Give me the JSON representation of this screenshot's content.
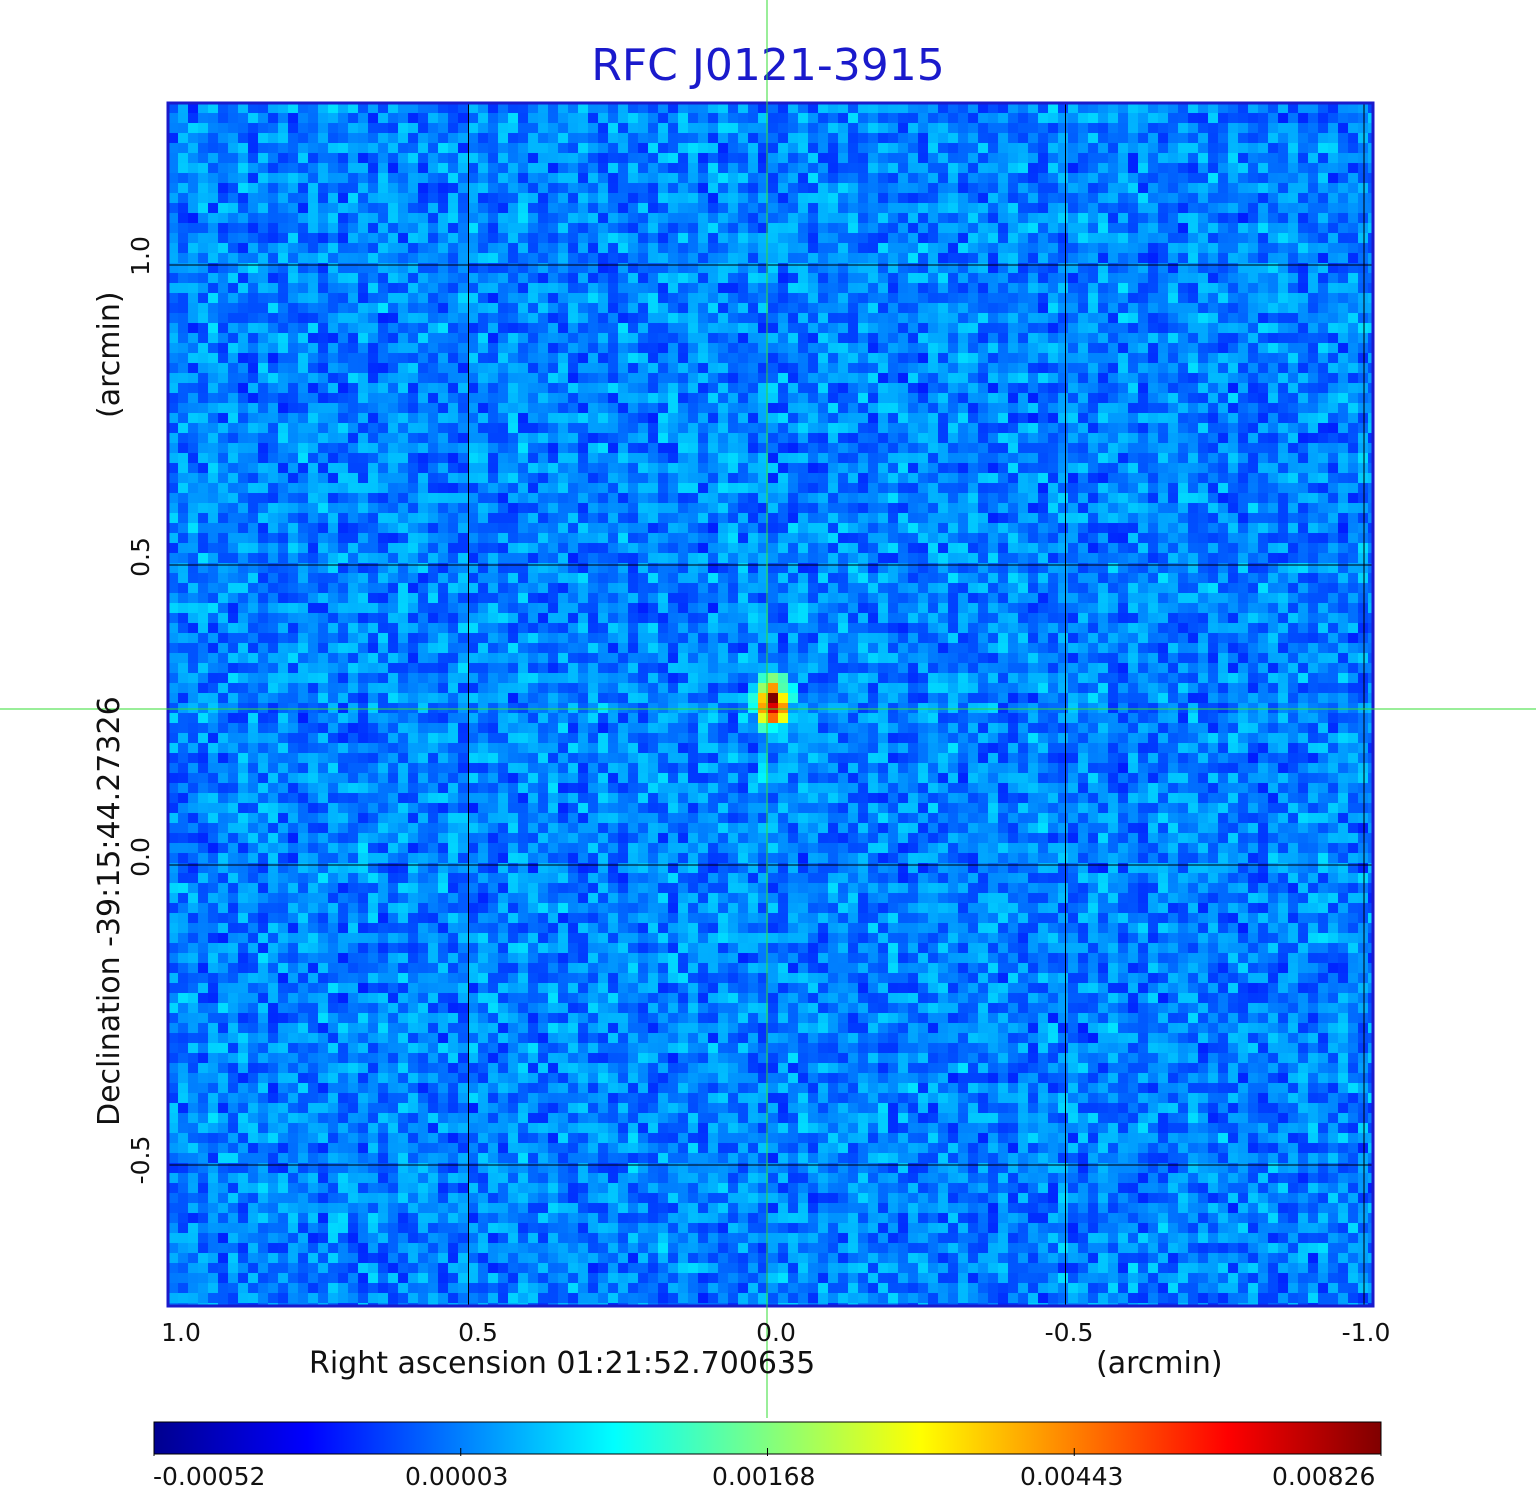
{
  "title": "RFC J0121-3915",
  "x_axis": {
    "label": "Right ascension  01:21:52.700635",
    "unit": "(arcmin)",
    "ticks": [
      "1.0",
      "0.5",
      "0.0",
      "-0.5",
      "-1.0"
    ]
  },
  "y_axis": {
    "label": "Declination  -39:15:44.27326",
    "unit": "(arcmin)",
    "ticks": [
      "1.0",
      "0.5",
      "0.0",
      "-0.5"
    ]
  },
  "colorbar": {
    "ticks": [
      "-0.00052",
      "0.00003",
      "0.00168",
      "0.00443",
      "0.00826"
    ]
  },
  "colors": {
    "frame": "#1a1acc",
    "crosshair": "#33dd33",
    "grid": "#000000",
    "title": "#1a1acc"
  },
  "source": {
    "x_arcmin": -0.01,
    "y_arcmin": 0.27
  }
}
